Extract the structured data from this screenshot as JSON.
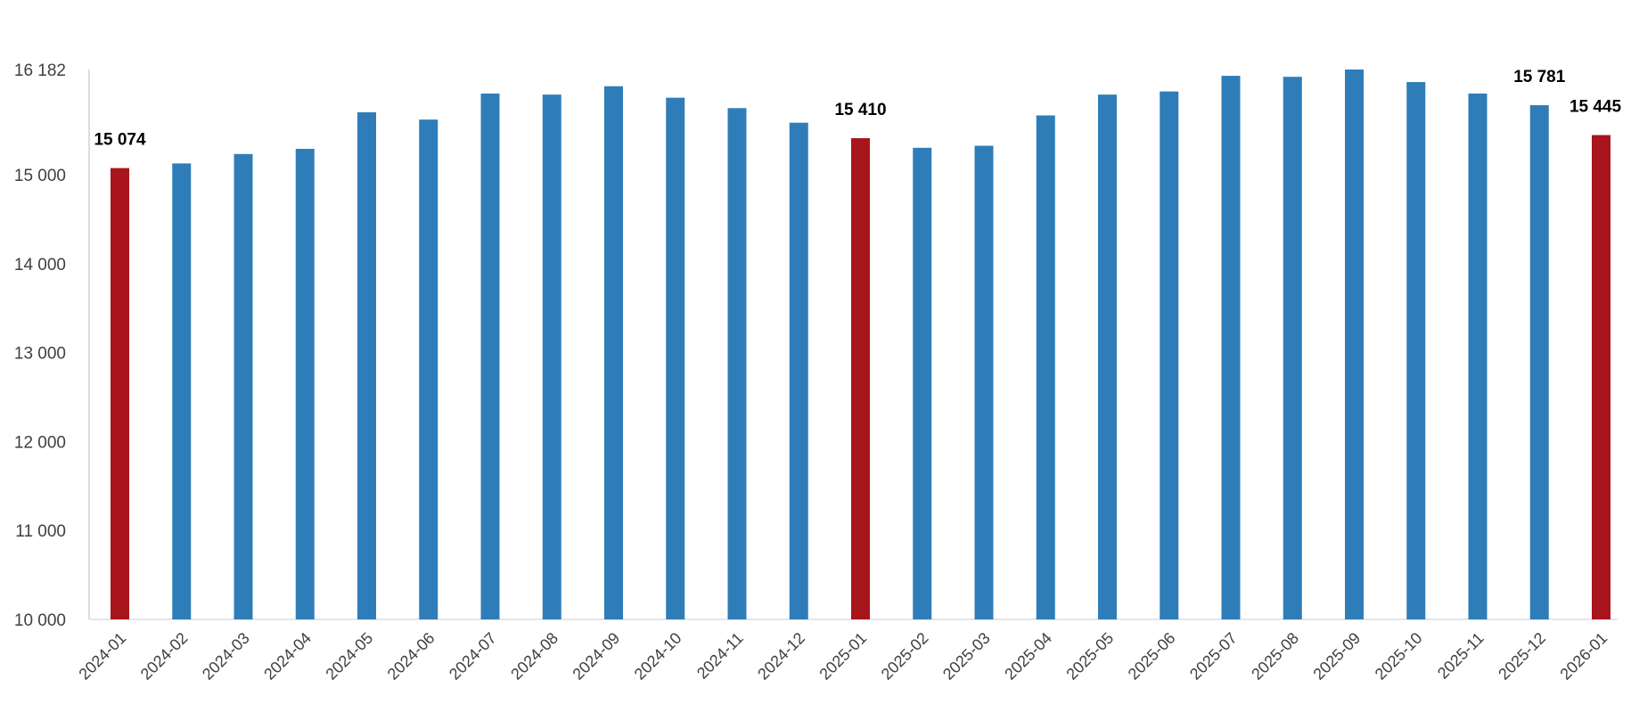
{
  "chart_data": {
    "type": "bar",
    "title": "",
    "xlabel": "",
    "ylabel": "",
    "ylim": [
      10000,
      16182
    ],
    "y_ticks": [
      "10 000",
      "11 000",
      "12 000",
      "13 000",
      "14 000",
      "15 000",
      "16 182"
    ],
    "y_tick_values": [
      10000,
      11000,
      12000,
      13000,
      14000,
      15000,
      16182
    ],
    "grid": false,
    "categories": [
      "2024-01",
      "2024-02",
      "2024-03",
      "2024-04",
      "2024-05",
      "2024-06",
      "2024-07",
      "2024-08",
      "2024-09",
      "2024-10",
      "2024-11",
      "2024-12",
      "2025-01",
      "2025-02",
      "2025-03",
      "2025-04",
      "2025-05",
      "2025-06",
      "2025-07",
      "2025-08",
      "2025-09",
      "2025-10",
      "2025-11",
      "2025-12",
      "2026-01"
    ],
    "values": [
      15074,
      15126,
      15232,
      15290,
      15701,
      15619,
      15912,
      15900,
      15994,
      15865,
      15748,
      15584,
      15410,
      15302,
      15325,
      15666,
      15900,
      15935,
      16111,
      16100,
      16182,
      16041,
      15912,
      15781,
      15445
    ],
    "highlighted": [
      "2024-01",
      "2025-01",
      "2026-01"
    ],
    "data_labels": [
      {
        "category": "2024-01",
        "text": "15 074"
      },
      {
        "category": "2025-01",
        "text": "15 410"
      },
      {
        "category": "2025-12",
        "text": "15 781"
      },
      {
        "category": "2026-01",
        "text": "15 445"
      }
    ],
    "colors": {
      "default": "#2f7db8",
      "highlight": "#a8151c",
      "axis": "#d9dde8"
    }
  }
}
